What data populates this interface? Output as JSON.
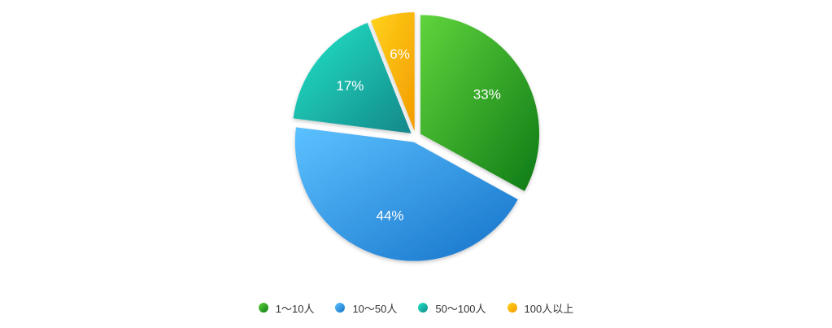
{
  "chart_data": {
    "type": "pie",
    "start_angle_deg": 0,
    "direction": "clockwise",
    "exploded_slices": true,
    "legend_position": "bottom-center",
    "categories": [
      "1〜10人",
      "10〜50人",
      "50〜100人",
      "100人以上"
    ],
    "values": [
      33,
      44,
      17,
      6
    ],
    "labels": [
      "33%",
      "44%",
      "17%",
      "6%"
    ],
    "colors": [
      [
        "#5fd43c",
        "#0e7a16"
      ],
      [
        "#5cc1ff",
        "#1572c9"
      ],
      [
        "#1fe6c8",
        "#16878a"
      ],
      [
        "#ffd21a",
        "#f39b00"
      ]
    ]
  }
}
